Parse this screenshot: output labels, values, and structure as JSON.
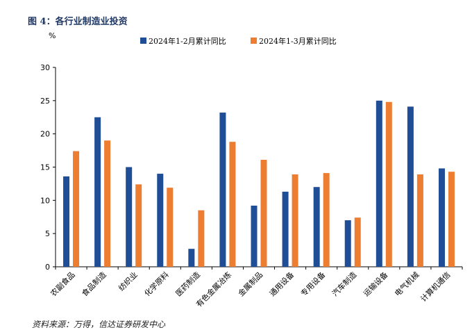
{
  "figure": {
    "title": "图 4：各行业制造业投资",
    "source": "资料来源：万得，信达证券研发中心"
  },
  "colors": {
    "series1": "#1f4e96",
    "series2": "#ed7d31",
    "axis": "#000000"
  },
  "chart_data": {
    "type": "bar",
    "ylabel": "%",
    "ylim": [
      0,
      30
    ],
    "yticks": [
      0,
      5,
      10,
      15,
      20,
      25,
      30
    ],
    "legend_position": "top",
    "grid": false,
    "categories": [
      "农副食品",
      "食品制造",
      "纺织业",
      "化学原料",
      "医药制造",
      "有色金属冶炼",
      "金属制品",
      "通用设备",
      "专用设备",
      "汽车制造",
      "运输设备",
      "电气机械",
      "计算机通信"
    ],
    "series": [
      {
        "name": "2024年1-2月累计同比",
        "values": [
          13.6,
          22.5,
          15.0,
          14.0,
          2.7,
          23.2,
          9.2,
          11.3,
          12.0,
          7.0,
          25.0,
          24.1,
          14.8
        ]
      },
      {
        "name": "2024年1-3月累计同比",
        "values": [
          17.4,
          19.0,
          12.4,
          11.9,
          8.5,
          18.8,
          16.1,
          13.9,
          14.1,
          7.4,
          24.8,
          13.9,
          14.3
        ]
      }
    ]
  }
}
